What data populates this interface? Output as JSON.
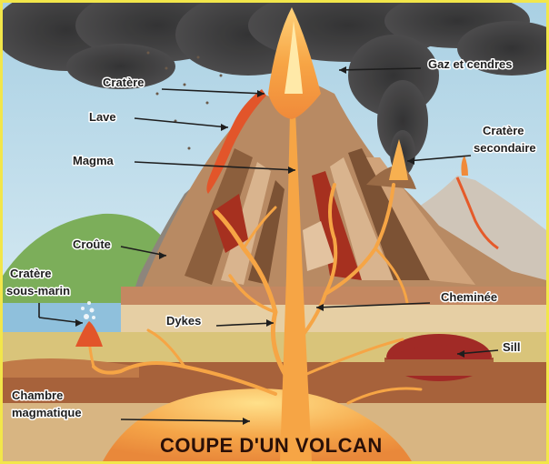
{
  "title": "COUPE D'UN VOLCAN",
  "labels": {
    "cratere": "Cratère",
    "lave": "Lave",
    "magma": "Magma",
    "gaz": "Gaz et cendres",
    "cratere_secondaire_1": "Cratère",
    "cratere_secondaire_2": "secondaire",
    "croute": "Croûte",
    "cratere_sous_marin_1": "Cratère",
    "cratere_sous_marin_2": "sous-marin",
    "cheminee": "Cheminée",
    "dykes": "Dykes",
    "sill": "Sill",
    "chambre_1": "Chambre",
    "chambre_2": "magmatique"
  },
  "colors": {
    "frame": "#f2e64a",
    "sky": "#b9dbea",
    "smoke": "#3c3a3a",
    "magma": "#f6a545",
    "lava": "#e2552a",
    "sea": "#8fc0dc",
    "hill": "#7cae5a"
  }
}
